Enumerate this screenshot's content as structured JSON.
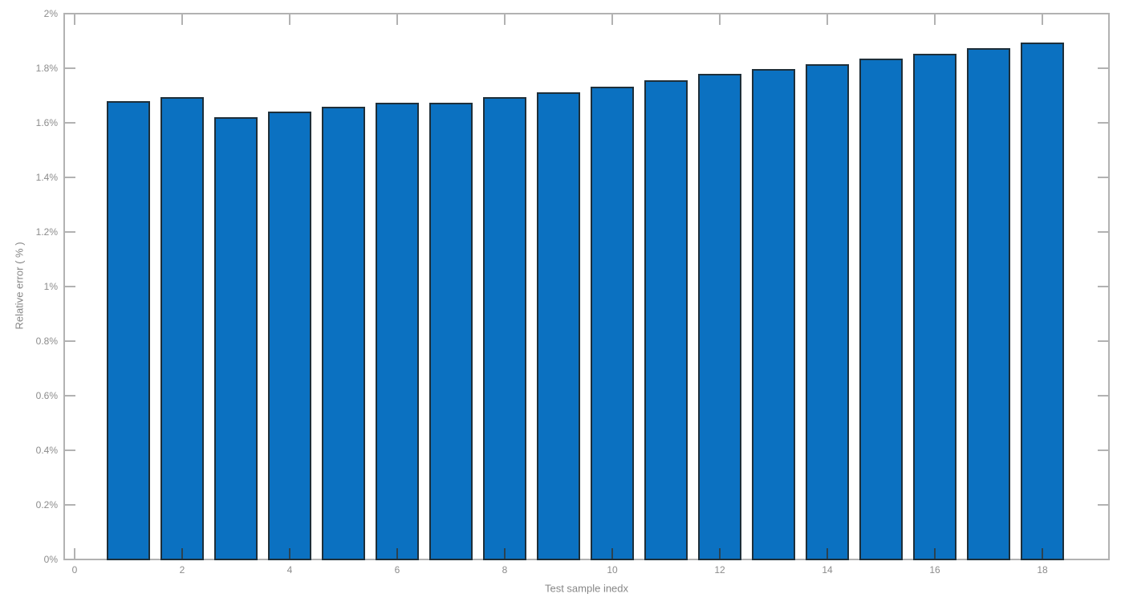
{
  "figure": {
    "kind": "matlab-style-bar-figure",
    "background": "#ffffff"
  },
  "colors": {
    "bar_face": "#0b71c1",
    "bar_edge": "#1e2f3a",
    "axis_line": "#b2b2b2",
    "tick_label": "#8c8c8c",
    "axis_label": "#878787",
    "covered_tick": "#2c4250"
  },
  "chart_data": {
    "type": "bar",
    "title": "",
    "xlabel": "Test sample inedx",
    "ylabel": "Relative error ( % )",
    "categories": [
      1,
      2,
      3,
      4,
      5,
      6,
      7,
      8,
      9,
      10,
      11,
      12,
      13,
      14,
      15,
      16,
      17,
      18
    ],
    "values": [
      1.68,
      1.695,
      1.62,
      1.64,
      1.66,
      1.675,
      1.675,
      1.695,
      1.712,
      1.733,
      1.757,
      1.78,
      1.797,
      1.815,
      1.835,
      1.854,
      1.874,
      1.894
    ],
    "value_unit": "percent",
    "x_tick_values": [
      0,
      2,
      4,
      6,
      8,
      10,
      12,
      14,
      16,
      18
    ],
    "x_tick_labels": [
      "0",
      "2",
      "4",
      "6",
      "8",
      "10",
      "12",
      "14",
      "16",
      "18"
    ],
    "y_tick_values": [
      0,
      0.2,
      0.4,
      0.6,
      0.8,
      1.0,
      1.2,
      1.4,
      1.6,
      1.8,
      2.0
    ],
    "y_tick_labels": [
      "0%",
      "0.2%",
      "0.4%",
      "0.6%",
      "0.8%",
      "1%",
      "1.2%",
      "1.4%",
      "1.6%",
      "1.8%",
      "2%"
    ],
    "xlim": [
      -0.2,
      19.25
    ],
    "ylim": [
      0,
      2
    ],
    "bar_width_fraction": 0.8,
    "grid": false,
    "legend": null,
    "box": true,
    "tick_direction": "in"
  }
}
